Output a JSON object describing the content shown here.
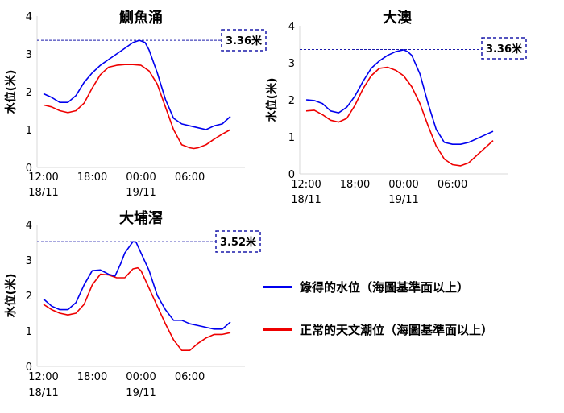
{
  "colors": {
    "recorded": "#0000ee",
    "normal": "#ee0000",
    "threshold": "#1a1aaa",
    "axis": "#d9d9d9",
    "text": "#000000"
  },
  "legend": {
    "recorded": "錄得的水位（海圖基準面以上）",
    "normal": "正常的天文潮位（海圖基準面以上）"
  },
  "chart_data": [
    {
      "type": "line",
      "title": "鰂魚涌",
      "ylabel": "水位(米)",
      "ylim": [
        0,
        4
      ],
      "yticks": [
        "0",
        "1",
        "2",
        "3",
        "4"
      ],
      "xlim": [
        0,
        23
      ],
      "xticks": [
        {
          "x": 0,
          "label": "12:00",
          "sub": "18/11"
        },
        {
          "x": 6,
          "label": "18:00",
          "sub": ""
        },
        {
          "x": 12,
          "label": "00:00",
          "sub": "19/11"
        },
        {
          "x": 18,
          "label": "06:00",
          "sub": ""
        }
      ],
      "threshold": {
        "value": 3.36,
        "label": "3.36米"
      },
      "series": [
        {
          "name": "recorded",
          "x": [
            0,
            1,
            2,
            3,
            4,
            5,
            6,
            7,
            8,
            9,
            10,
            11,
            11.8,
            12.5,
            13,
            14,
            15,
            16,
            17,
            18,
            19,
            20,
            21,
            22,
            23
          ],
          "y": [
            1.95,
            1.85,
            1.72,
            1.72,
            1.9,
            2.25,
            2.5,
            2.7,
            2.85,
            3.0,
            3.15,
            3.3,
            3.36,
            3.3,
            3.1,
            2.5,
            1.8,
            1.3,
            1.15,
            1.1,
            1.05,
            1.0,
            1.1,
            1.15,
            1.35
          ]
        },
        {
          "name": "normal",
          "x": [
            0,
            1,
            2,
            3,
            4,
            5,
            6,
            7,
            8,
            9,
            10,
            11,
            12,
            13,
            14,
            15,
            16,
            17,
            18,
            18.5,
            19,
            20,
            21,
            22,
            23
          ],
          "y": [
            1.65,
            1.6,
            1.5,
            1.45,
            1.5,
            1.7,
            2.1,
            2.45,
            2.65,
            2.7,
            2.72,
            2.72,
            2.7,
            2.55,
            2.2,
            1.6,
            1.0,
            0.6,
            0.52,
            0.5,
            0.52,
            0.6,
            0.75,
            0.88,
            1.0
          ]
        }
      ]
    },
    {
      "type": "line",
      "title": "大澳",
      "ylabel": "水位(米)",
      "ylim": [
        0,
        4
      ],
      "yticks": [
        "0",
        "1",
        "2",
        "3",
        "4"
      ],
      "xlim": [
        0,
        23
      ],
      "xticks": [
        {
          "x": 0,
          "label": "12:00",
          "sub": "18/11"
        },
        {
          "x": 6,
          "label": "18:00",
          "sub": ""
        },
        {
          "x": 12,
          "label": "00:00",
          "sub": "19/11"
        },
        {
          "x": 18,
          "label": "06:00",
          "sub": ""
        }
      ],
      "threshold": {
        "value": 3.36,
        "label": "3.36米"
      },
      "series": [
        {
          "name": "recorded",
          "x": [
            0,
            1,
            2,
            3,
            4,
            5,
            6,
            7,
            8,
            9,
            10,
            11,
            12,
            12.5,
            13,
            14,
            15,
            16,
            17,
            18,
            19,
            20,
            21,
            22,
            23
          ],
          "y": [
            2.0,
            1.98,
            1.9,
            1.7,
            1.65,
            1.8,
            2.1,
            2.5,
            2.85,
            3.05,
            3.2,
            3.3,
            3.35,
            3.3,
            3.2,
            2.7,
            1.9,
            1.2,
            0.85,
            0.8,
            0.8,
            0.85,
            0.95,
            1.05,
            1.15
          ]
        },
        {
          "name": "normal",
          "x": [
            0,
            1,
            2,
            3,
            4,
            5,
            6,
            7,
            8,
            9,
            10,
            11,
            12,
            13,
            14,
            15,
            16,
            17,
            18,
            19,
            20,
            21,
            22,
            23
          ],
          "y": [
            1.7,
            1.72,
            1.6,
            1.45,
            1.4,
            1.5,
            1.85,
            2.3,
            2.65,
            2.85,
            2.88,
            2.8,
            2.65,
            2.35,
            1.9,
            1.3,
            0.75,
            0.4,
            0.25,
            0.22,
            0.3,
            0.5,
            0.7,
            0.9
          ]
        }
      ]
    },
    {
      "type": "line",
      "title": "大埔滘",
      "ylabel": "水位(米)",
      "ylim": [
        0,
        4
      ],
      "yticks": [
        "0",
        "1",
        "2",
        "3",
        "4"
      ],
      "xlim": [
        0,
        23
      ],
      "xticks": [
        {
          "x": 0,
          "label": "12:00",
          "sub": "18/11"
        },
        {
          "x": 6,
          "label": "18:00",
          "sub": ""
        },
        {
          "x": 12,
          "label": "00:00",
          "sub": "19/11"
        },
        {
          "x": 18,
          "label": "06:00",
          "sub": ""
        }
      ],
      "threshold": {
        "value": 3.52,
        "label": "3.52米"
      },
      "series": [
        {
          "name": "recorded",
          "x": [
            0,
            1,
            2,
            3,
            4,
            5,
            6,
            7,
            8,
            8.8,
            9.5,
            10,
            11,
            11.4,
            12,
            13,
            14,
            15,
            16,
            17,
            18,
            19,
            20,
            21,
            22,
            23
          ],
          "y": [
            1.9,
            1.7,
            1.6,
            1.6,
            1.8,
            2.3,
            2.7,
            2.72,
            2.6,
            2.55,
            2.9,
            3.2,
            3.52,
            3.5,
            3.2,
            2.7,
            2.0,
            1.6,
            1.3,
            1.3,
            1.2,
            1.15,
            1.1,
            1.05,
            1.05,
            1.25
          ]
        },
        {
          "name": "normal",
          "x": [
            0,
            1,
            2,
            3,
            4,
            5,
            6,
            7,
            8,
            9,
            10,
            11,
            11.6,
            12,
            13,
            14,
            15,
            16,
            17,
            18,
            18.5,
            19,
            20,
            21,
            22,
            23
          ],
          "y": [
            1.75,
            1.6,
            1.5,
            1.45,
            1.5,
            1.75,
            2.3,
            2.6,
            2.58,
            2.5,
            2.5,
            2.75,
            2.78,
            2.7,
            2.2,
            1.7,
            1.2,
            0.75,
            0.45,
            0.45,
            0.55,
            0.65,
            0.8,
            0.9,
            0.9,
            0.95
          ]
        }
      ]
    }
  ]
}
